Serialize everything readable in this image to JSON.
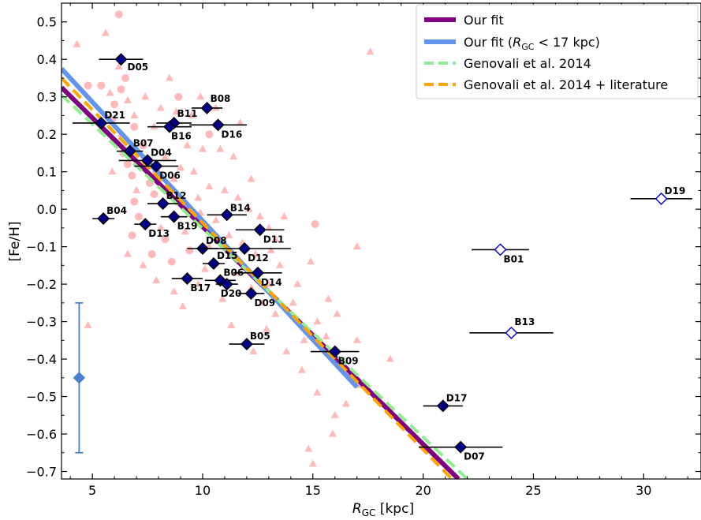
{
  "chart_data": {
    "type": "scatter",
    "xlabel": "R_GC [kpc]",
    "xlabel_main": "R",
    "xlabel_sub": "GC",
    "xlabel_unit": " [kpc]",
    "ylabel": "[Fe/H]",
    "xlim": [
      3.6,
      32.6
    ],
    "ylim": [
      -0.72,
      0.55
    ],
    "x_ticks": [
      5,
      10,
      15,
      20,
      25,
      30
    ],
    "y_ticks": [
      0.5,
      0.4,
      0.3,
      0.2,
      0.1,
      0.0,
      -0.1,
      -0.2,
      -0.3,
      -0.4,
      -0.5,
      -0.6,
      -0.7
    ],
    "y_tick_labels": [
      "0.5",
      "0.4",
      "0.3",
      "0.2",
      "0.1",
      "0.0",
      "−0.1",
      "−0.2",
      "−0.3",
      "−0.4",
      "−0.5",
      "−0.6",
      "−0.7"
    ],
    "grid": false,
    "legend_position": "top-right",
    "legend": [
      {
        "label": "Our fit",
        "color": "#800080",
        "style": "solid-thick"
      },
      {
        "label_main": "Our fit (",
        "label_r": "R",
        "label_sub": "GC",
        "label_rest": " < 17 kpc)",
        "color": "#6495ED",
        "style": "solid-thick"
      },
      {
        "label": "Genovali et al. 2014",
        "color": "#90EE90",
        "style": "dashed"
      },
      {
        "label": "Genovali et al. 2014 + literature",
        "color": "#FFA500",
        "style": "dashed"
      }
    ],
    "fit_lines": [
      {
        "name": "Our fit",
        "color": "#800080",
        "x": [
          3.6,
          21.6
        ],
        "y": [
          0.325,
          -0.72
        ]
      },
      {
        "name": "Our fit (R_GC < 17 kpc)",
        "color": "#6495ED",
        "x": [
          3.6,
          17.0
        ],
        "y": [
          0.375,
          -0.475
        ]
      },
      {
        "name": "Genovali et al. 2014",
        "color": "#90EE90",
        "x": [
          3.6,
          22.0
        ],
        "y": [
          0.305,
          -0.72
        ]
      },
      {
        "name": "Genovali et al. 2014 + literature",
        "color": "#FFA500",
        "x": [
          3.6,
          21.3
        ],
        "y": [
          0.35,
          -0.72
        ]
      }
    ],
    "stars": [
      {
        "name": "D05",
        "x": 6.3,
        "y": 0.4,
        "xerr": 1.0,
        "open": false
      },
      {
        "name": "D21",
        "x": 5.4,
        "y": 0.23,
        "xerr": 1.3,
        "open": false
      },
      {
        "name": "B08",
        "x": 10.2,
        "y": 0.27,
        "xerr": 0.7,
        "open": false
      },
      {
        "name": "B11",
        "x": 8.7,
        "y": 0.23,
        "xerr": 0.8,
        "open": false
      },
      {
        "name": "B16",
        "x": 8.5,
        "y": 0.22,
        "xerr": 1.0,
        "open": false
      },
      {
        "name": "D16",
        "x": 10.7,
        "y": 0.225,
        "xerr": 1.3,
        "open": false
      },
      {
        "name": "B07",
        "x": 6.7,
        "y": 0.155,
        "xerr": 0.6,
        "open": false
      },
      {
        "name": "D04",
        "x": 7.5,
        "y": 0.13,
        "xerr": 1.3,
        "open": false
      },
      {
        "name": "D06",
        "x": 7.9,
        "y": 0.115,
        "xerr": 1.0,
        "open": false
      },
      {
        "name": "B12",
        "x": 8.2,
        "y": 0.015,
        "xerr": 0.7,
        "open": false
      },
      {
        "name": "B04",
        "x": 5.5,
        "y": -0.025,
        "xerr": 0.5,
        "open": false
      },
      {
        "name": "D13",
        "x": 7.4,
        "y": -0.04,
        "xerr": 0.5,
        "open": false
      },
      {
        "name": "B19",
        "x": 8.7,
        "y": -0.02,
        "xerr": 0.6,
        "open": false
      },
      {
        "name": "B14",
        "x": 11.1,
        "y": -0.015,
        "xerr": 0.9,
        "open": false
      },
      {
        "name": "D11",
        "x": 12.6,
        "y": -0.055,
        "xerr": 1.1,
        "open": false
      },
      {
        "name": "D08",
        "x": 10.0,
        "y": -0.105,
        "xerr": 0.7,
        "open": false
      },
      {
        "name": "D12",
        "x": 11.9,
        "y": -0.105,
        "xerr": 2.1,
        "open": false
      },
      {
        "name": "D15",
        "x": 10.5,
        "y": -0.145,
        "xerr": 0.5,
        "open": false
      },
      {
        "name": "D14",
        "x": 12.5,
        "y": -0.17,
        "xerr": 1.1,
        "open": false
      },
      {
        "name": "B17",
        "x": 9.3,
        "y": -0.185,
        "xerr": 0.7,
        "open": false
      },
      {
        "name": "B06",
        "x": 10.8,
        "y": -0.19,
        "xerr": 0.7,
        "open": false
      },
      {
        "name": "D20",
        "x": 11.1,
        "y": -0.2,
        "xerr": 0.5,
        "open": false
      },
      {
        "name": "D09",
        "x": 12.2,
        "y": -0.225,
        "xerr": 0.6,
        "open": false
      },
      {
        "name": "B05",
        "x": 12.0,
        "y": -0.36,
        "xerr": 0.8,
        "open": false
      },
      {
        "name": "B09",
        "x": 16.0,
        "y": -0.38,
        "xerr": 1.1,
        "open": false
      },
      {
        "name": "D17",
        "x": 20.9,
        "y": -0.525,
        "xerr": 0.9,
        "open": false
      },
      {
        "name": "D07",
        "x": 21.7,
        "y": -0.635,
        "xerr": 1.9,
        "open": false
      },
      {
        "name": "B01",
        "x": 23.5,
        "y": -0.108,
        "xerr": 1.3,
        "open": true
      },
      {
        "name": "B13",
        "x": 24.0,
        "y": -0.33,
        "xerr": 1.9,
        "open": true
      },
      {
        "name": "D19",
        "x": 30.8,
        "y": 0.028,
        "xerr": 1.4,
        "open": true
      }
    ],
    "error_bar_marker": {
      "x": 4.4,
      "y": -0.45,
      "yerr": 0.2,
      "color": "#4A7FD0"
    },
    "background_circles": [
      [
        6.2,
        0.52
      ],
      [
        6.5,
        0.35
      ],
      [
        6.3,
        0.32
      ],
      [
        5.4,
        0.33
      ],
      [
        4.8,
        0.33
      ],
      [
        6.0,
        0.28
      ],
      [
        6.9,
        0.22
      ],
      [
        5.9,
        0.24
      ],
      [
        7.3,
        0.17
      ],
      [
        6.6,
        0.12
      ],
      [
        7.6,
        0.07
      ],
      [
        6.8,
        0.09
      ],
      [
        7.8,
        0.04
      ],
      [
        6.9,
        0.02
      ],
      [
        7.1,
        -0.02
      ],
      [
        6.8,
        -0.07
      ],
      [
        7.7,
        -0.12
      ],
      [
        8.3,
        -0.08
      ],
      [
        9.4,
        -0.11
      ],
      [
        8.6,
        -0.14
      ],
      [
        15.1,
        -0.04
      ],
      [
        10.3,
        0.2
      ],
      [
        8.9,
        0.3
      ],
      [
        6.4,
        0.15
      ],
      [
        7.9,
        0.1
      ],
      [
        8.5,
        0.05
      ]
    ],
    "background_triangles": [
      [
        4.3,
        0.44
      ],
      [
        5.6,
        0.47
      ],
      [
        6.2,
        0.38
      ],
      [
        5.8,
        0.31
      ],
      [
        6.6,
        0.29
      ],
      [
        7.4,
        0.3
      ],
      [
        8.1,
        0.27
      ],
      [
        8.8,
        0.26
      ],
      [
        9.5,
        0.25
      ],
      [
        10.6,
        0.27
      ],
      [
        9.3,
        0.17
      ],
      [
        10.0,
        0.16
      ],
      [
        10.8,
        0.16
      ],
      [
        11.4,
        0.14
      ],
      [
        9.6,
        0.1
      ],
      [
        8.7,
        0.08
      ],
      [
        10.3,
        0.06
      ],
      [
        11.0,
        0.05
      ],
      [
        11.6,
        0.03
      ],
      [
        12.1,
        0.0
      ],
      [
        12.6,
        -0.02
      ],
      [
        9.9,
        -0.01
      ],
      [
        10.6,
        -0.03
      ],
      [
        11.2,
        -0.07
      ],
      [
        11.8,
        -0.09
      ],
      [
        12.4,
        -0.12
      ],
      [
        13.1,
        -0.11
      ],
      [
        13.5,
        -0.15
      ],
      [
        13.0,
        -0.2
      ],
      [
        12.7,
        -0.25
      ],
      [
        13.3,
        -0.28
      ],
      [
        12.9,
        -0.32
      ],
      [
        10.9,
        -0.24
      ],
      [
        9.8,
        -0.2
      ],
      [
        8.7,
        -0.22
      ],
      [
        7.9,
        -0.19
      ],
      [
        7.3,
        -0.15
      ],
      [
        6.6,
        -0.12
      ],
      [
        7.0,
        0.05
      ],
      [
        5.9,
        0.1
      ],
      [
        6.3,
        0.2
      ],
      [
        6.9,
        0.25
      ],
      [
        7.8,
        0.22
      ],
      [
        8.3,
        0.14
      ],
      [
        9.0,
        0.11
      ],
      [
        9.8,
        0.03
      ],
      [
        8.1,
        -0.05
      ],
      [
        9.2,
        -0.06
      ],
      [
        10.3,
        -0.1
      ],
      [
        11.5,
        -0.17
      ],
      [
        12.2,
        -0.21
      ],
      [
        14.1,
        -0.25
      ],
      [
        15.2,
        -0.3
      ],
      [
        14.6,
        -0.35
      ],
      [
        13.8,
        -0.38
      ],
      [
        15.6,
        -0.34
      ],
      [
        16.1,
        -0.28
      ],
      [
        17.0,
        -0.35
      ],
      [
        16.7,
        -0.44
      ],
      [
        17.1,
        -0.47
      ],
      [
        15.2,
        -0.49
      ],
      [
        16.0,
        -0.55
      ],
      [
        15.9,
        -0.6
      ],
      [
        14.8,
        -0.64
      ],
      [
        15.0,
        -0.68
      ],
      [
        18.5,
        -0.4
      ],
      [
        17.6,
        0.42
      ],
      [
        17.0,
        -0.1
      ],
      [
        14.3,
        -0.2
      ],
      [
        13.0,
        -0.05
      ],
      [
        4.8,
        -0.31
      ],
      [
        8.5,
        0.35
      ],
      [
        9.9,
        0.3
      ],
      [
        11.7,
        0.23
      ],
      [
        12.2,
        0.08
      ],
      [
        13.3,
        -0.08
      ],
      [
        10.1,
        -0.16
      ],
      [
        9.1,
        -0.26
      ],
      [
        11.3,
        -0.31
      ],
      [
        12.3,
        -0.38
      ],
      [
        14.5,
        -0.43
      ],
      [
        16.5,
        -0.52
      ],
      [
        15.7,
        -0.24
      ],
      [
        14.9,
        -0.14
      ],
      [
        13.7,
        -0.02
      ]
    ]
  }
}
